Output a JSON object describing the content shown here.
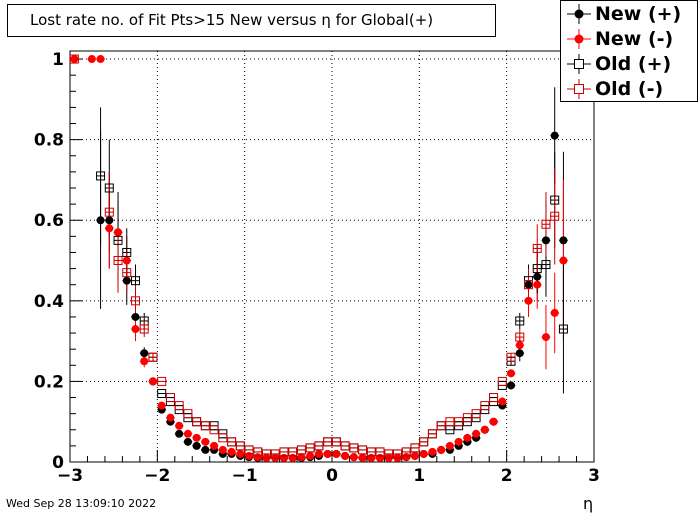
{
  "chart_data": {
    "type": "scatter",
    "title": "Lost rate no. of Fit Pts>15 New versus η for Global(+)",
    "xlabel": "η",
    "ylabel": "",
    "xlim": [
      -3,
      3
    ],
    "ylim": [
      0,
      1.02
    ],
    "x_ticks": [
      "−3",
      "−2",
      "−1",
      "0",
      "1",
      "2",
      "3"
    ],
    "y_ticks": [
      "0",
      "0.2",
      "0.4",
      "0.6",
      "0.8",
      "1"
    ],
    "grid": true,
    "legend_position": "top-right",
    "series": [
      {
        "name": "New (+)",
        "marker": "filled-circle",
        "color": "#000000",
        "points": [
          [
            -2.65,
            0.6,
            0.22
          ],
          [
            -2.55,
            0.6,
            0.12
          ],
          [
            -2.45,
            0.57,
            0.1
          ],
          [
            -2.35,
            0.45,
            0.06
          ],
          [
            -2.25,
            0.36,
            0.03
          ],
          [
            -2.15,
            0.27,
            0.015
          ],
          [
            -2.05,
            0.2,
            0.01
          ],
          [
            -1.95,
            0.13,
            0.008
          ],
          [
            -1.85,
            0.1,
            0
          ],
          [
            -1.75,
            0.07,
            0
          ],
          [
            -1.65,
            0.05,
            0
          ],
          [
            -1.55,
            0.04,
            0
          ],
          [
            -1.45,
            0.03,
            0
          ],
          [
            -1.35,
            0.03,
            0
          ],
          [
            -1.25,
            0.02,
            0
          ],
          [
            -1.15,
            0.02,
            0
          ],
          [
            -1.05,
            0.015,
            0
          ],
          [
            -0.95,
            0.012,
            0
          ],
          [
            -0.85,
            0.01,
            0
          ],
          [
            -0.75,
            0.01,
            0
          ],
          [
            -0.65,
            0.01,
            0
          ],
          [
            -0.55,
            0.01,
            0
          ],
          [
            -0.45,
            0.01,
            0
          ],
          [
            -0.35,
            0.01,
            0
          ],
          [
            -0.25,
            0.012,
            0
          ],
          [
            -0.15,
            0.015,
            0
          ],
          [
            -0.05,
            0.02,
            0
          ],
          [
            0.05,
            0.02,
            0
          ],
          [
            0.15,
            0.015,
            0
          ],
          [
            0.25,
            0.012,
            0
          ],
          [
            0.35,
            0.01,
            0
          ],
          [
            0.45,
            0.01,
            0
          ],
          [
            0.55,
            0.01,
            0
          ],
          [
            0.65,
            0.01,
            0
          ],
          [
            0.75,
            0.01,
            0
          ],
          [
            0.85,
            0.012,
            0
          ],
          [
            0.95,
            0.015,
            0
          ],
          [
            1.05,
            0.02,
            0
          ],
          [
            1.15,
            0.02,
            0
          ],
          [
            1.25,
            0.03,
            0
          ],
          [
            1.35,
            0.03,
            0
          ],
          [
            1.45,
            0.04,
            0
          ],
          [
            1.55,
            0.05,
            0
          ],
          [
            1.65,
            0.06,
            0
          ],
          [
            1.75,
            0.08,
            0
          ],
          [
            1.85,
            0.1,
            0
          ],
          [
            1.95,
            0.14,
            0.008
          ],
          [
            2.05,
            0.19,
            0.01
          ],
          [
            2.15,
            0.27,
            0.02
          ],
          [
            2.25,
            0.44,
            0.04
          ],
          [
            2.35,
            0.46,
            0.06
          ],
          [
            2.45,
            0.55,
            0.1
          ],
          [
            2.55,
            0.81,
            0.12
          ],
          [
            2.65,
            0.55,
            0.22
          ]
        ]
      },
      {
        "name": "New (-)",
        "marker": "filled-circle",
        "color": "#ff0000",
        "points": [
          [
            -2.95,
            1.0,
            0
          ],
          [
            -2.75,
            1.0,
            0
          ],
          [
            -2.65,
            1.0,
            0
          ],
          [
            -2.55,
            0.58,
            0.1
          ],
          [
            -2.45,
            0.57,
            0.08
          ],
          [
            -2.35,
            0.5,
            0.06
          ],
          [
            -2.25,
            0.33,
            0.03
          ],
          [
            -2.15,
            0.25,
            0.015
          ],
          [
            -2.05,
            0.2,
            0.01
          ],
          [
            -1.95,
            0.14,
            0.008
          ],
          [
            -1.85,
            0.11,
            0
          ],
          [
            -1.75,
            0.09,
            0
          ],
          [
            -1.65,
            0.07,
            0
          ],
          [
            -1.55,
            0.06,
            0
          ],
          [
            -1.45,
            0.05,
            0
          ],
          [
            -1.35,
            0.04,
            0
          ],
          [
            -1.25,
            0.03,
            0
          ],
          [
            -1.15,
            0.025,
            0
          ],
          [
            -1.05,
            0.02,
            0
          ],
          [
            -0.95,
            0.015,
            0
          ],
          [
            -0.85,
            0.012,
            0
          ],
          [
            -0.75,
            0.01,
            0
          ],
          [
            -0.65,
            0.01,
            0
          ],
          [
            -0.55,
            0.01,
            0
          ],
          [
            -0.45,
            0.01,
            0
          ],
          [
            -0.35,
            0.012,
            0
          ],
          [
            -0.25,
            0.015,
            0
          ],
          [
            -0.15,
            0.02,
            0
          ],
          [
            -0.05,
            0.02,
            0
          ],
          [
            0.05,
            0.02,
            0
          ],
          [
            0.15,
            0.015,
            0
          ],
          [
            0.25,
            0.012,
            0
          ],
          [
            0.35,
            0.01,
            0
          ],
          [
            0.45,
            0.01,
            0
          ],
          [
            0.55,
            0.01,
            0
          ],
          [
            0.65,
            0.01,
            0
          ],
          [
            0.75,
            0.01,
            0
          ],
          [
            0.85,
            0.012,
            0
          ],
          [
            0.95,
            0.015,
            0
          ],
          [
            1.05,
            0.02,
            0
          ],
          [
            1.15,
            0.025,
            0
          ],
          [
            1.25,
            0.03,
            0
          ],
          [
            1.35,
            0.04,
            0
          ],
          [
            1.45,
            0.05,
            0
          ],
          [
            1.55,
            0.06,
            0
          ],
          [
            1.65,
            0.07,
            0
          ],
          [
            1.75,
            0.08,
            0
          ],
          [
            1.85,
            0.1,
            0
          ],
          [
            1.95,
            0.15,
            0.008
          ],
          [
            2.05,
            0.22,
            0.01
          ],
          [
            2.15,
            0.29,
            0.02
          ],
          [
            2.25,
            0.4,
            0.04
          ],
          [
            2.35,
            0.44,
            0.06
          ],
          [
            2.45,
            0.31,
            0.08
          ],
          [
            2.55,
            0.37,
            0.1
          ],
          [
            2.65,
            0.5,
            0.2
          ]
        ]
      },
      {
        "name": "Old (+)",
        "marker": "open-square",
        "color": "#000000",
        "points": [
          [
            -2.65,
            0.71,
            0.17
          ],
          [
            -2.55,
            0.68,
            0.12
          ],
          [
            -2.45,
            0.55,
            0.1
          ],
          [
            -2.35,
            0.52,
            0.06
          ],
          [
            -2.25,
            0.45,
            0.04
          ],
          [
            -2.15,
            0.35,
            0.02
          ],
          [
            -2.05,
            0.26,
            0.01
          ],
          [
            -1.95,
            0.17,
            0
          ],
          [
            -1.85,
            0.15,
            0
          ],
          [
            -1.75,
            0.13,
            0
          ],
          [
            -1.65,
            0.11,
            0
          ],
          [
            -1.55,
            0.1,
            0
          ],
          [
            -1.45,
            0.09,
            0
          ],
          [
            -1.35,
            0.09,
            0
          ],
          [
            -1.25,
            0.07,
            0
          ],
          [
            -1.15,
            0.05,
            0
          ],
          [
            -1.05,
            0.04,
            0
          ],
          [
            -0.95,
            0.03,
            0
          ],
          [
            -0.85,
            0.025,
            0
          ],
          [
            -0.75,
            0.02,
            0
          ],
          [
            -0.65,
            0.02,
            0
          ],
          [
            -0.55,
            0.025,
            0
          ],
          [
            -0.45,
            0.025,
            0
          ],
          [
            -0.35,
            0.03,
            0
          ],
          [
            -0.25,
            0.035,
            0
          ],
          [
            -0.15,
            0.04,
            0
          ],
          [
            -0.05,
            0.05,
            0
          ],
          [
            0.05,
            0.05,
            0
          ],
          [
            0.15,
            0.04,
            0
          ],
          [
            0.25,
            0.035,
            0
          ],
          [
            0.35,
            0.03,
            0
          ],
          [
            0.45,
            0.025,
            0
          ],
          [
            0.55,
            0.025,
            0
          ],
          [
            0.65,
            0.02,
            0
          ],
          [
            0.75,
            0.02,
            0
          ],
          [
            0.85,
            0.025,
            0
          ],
          [
            0.95,
            0.035,
            0
          ],
          [
            1.05,
            0.05,
            0
          ],
          [
            1.15,
            0.07,
            0
          ],
          [
            1.25,
            0.09,
            0
          ],
          [
            1.35,
            0.08,
            0
          ],
          [
            1.45,
            0.09,
            0
          ],
          [
            1.55,
            0.1,
            0
          ],
          [
            1.65,
            0.11,
            0
          ],
          [
            1.75,
            0.13,
            0
          ],
          [
            1.85,
            0.15,
            0
          ],
          [
            1.95,
            0.19,
            0
          ],
          [
            2.05,
            0.25,
            0.01
          ],
          [
            2.15,
            0.35,
            0.02
          ],
          [
            2.25,
            0.45,
            0.04
          ],
          [
            2.35,
            0.48,
            0.06
          ],
          [
            2.45,
            0.49,
            0.08
          ],
          [
            2.55,
            0.65,
            0.12
          ],
          [
            2.65,
            0.33,
            0.16
          ]
        ]
      },
      {
        "name": "Old (-)",
        "marker": "open-square",
        "color": "#cc0000",
        "points": [
          [
            -2.95,
            1.0,
            0
          ],
          [
            -2.55,
            0.62,
            0.1
          ],
          [
            -2.45,
            0.5,
            0.08
          ],
          [
            -2.35,
            0.47,
            0.05
          ],
          [
            -2.25,
            0.4,
            0.04
          ],
          [
            -2.15,
            0.33,
            0.02
          ],
          [
            -2.05,
            0.26,
            0.01
          ],
          [
            -1.95,
            0.2,
            0
          ],
          [
            -1.85,
            0.16,
            0
          ],
          [
            -1.75,
            0.14,
            0
          ],
          [
            -1.65,
            0.12,
            0
          ],
          [
            -1.55,
            0.1,
            0
          ],
          [
            -1.45,
            0.09,
            0
          ],
          [
            -1.35,
            0.08,
            0
          ],
          [
            -1.25,
            0.06,
            0
          ],
          [
            -1.15,
            0.05,
            0
          ],
          [
            -1.05,
            0.04,
            0
          ],
          [
            -0.95,
            0.03,
            0
          ],
          [
            -0.85,
            0.025,
            0
          ],
          [
            -0.75,
            0.02,
            0
          ],
          [
            -0.65,
            0.02,
            0
          ],
          [
            -0.55,
            0.025,
            0
          ],
          [
            -0.45,
            0.025,
            0
          ],
          [
            -0.35,
            0.03,
            0
          ],
          [
            -0.25,
            0.035,
            0
          ],
          [
            -0.15,
            0.04,
            0
          ],
          [
            -0.05,
            0.05,
            0
          ],
          [
            0.05,
            0.05,
            0
          ],
          [
            0.15,
            0.04,
            0
          ],
          [
            0.25,
            0.035,
            0
          ],
          [
            0.35,
            0.03,
            0
          ],
          [
            0.45,
            0.025,
            0
          ],
          [
            0.55,
            0.025,
            0
          ],
          [
            0.65,
            0.02,
            0
          ],
          [
            0.75,
            0.02,
            0
          ],
          [
            0.85,
            0.025,
            0
          ],
          [
            0.95,
            0.035,
            0
          ],
          [
            1.05,
            0.05,
            0
          ],
          [
            1.15,
            0.07,
            0
          ],
          [
            1.25,
            0.09,
            0
          ],
          [
            1.35,
            0.1,
            0
          ],
          [
            1.45,
            0.1,
            0
          ],
          [
            1.55,
            0.11,
            0
          ],
          [
            1.65,
            0.12,
            0
          ],
          [
            1.75,
            0.14,
            0
          ],
          [
            1.85,
            0.16,
            0
          ],
          [
            1.95,
            0.2,
            0
          ],
          [
            2.05,
            0.26,
            0.01
          ],
          [
            2.15,
            0.31,
            0.02
          ],
          [
            2.25,
            0.44,
            0.04
          ],
          [
            2.35,
            0.53,
            0.06
          ],
          [
            2.45,
            0.59,
            0.08
          ],
          [
            2.55,
            0.61,
            0.12
          ]
        ]
      }
    ]
  },
  "footer": {
    "timestamp": "Wed Sep 28 13:09:10 2022"
  }
}
